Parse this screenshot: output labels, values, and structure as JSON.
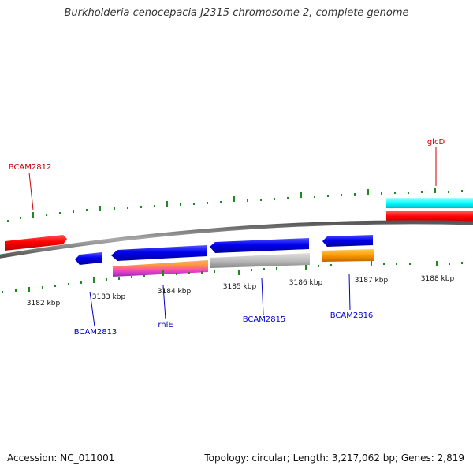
{
  "title": "Burkholderia cenocepacia J2315 chromosome 2, complete genome",
  "footer": {
    "accession": "Accession: NC_011001",
    "topology": "Topology: circular; Length: 3,217,062 bp; Genes: 2,819"
  },
  "ticks": {
    "labels": [
      "3182 kbp",
      "3183 kbp",
      "3184 kbp",
      "3185 kbp",
      "3186 kbp",
      "3187 kbp",
      "3188 kbp"
    ],
    "color": "#228822"
  },
  "genes": [
    {
      "name": "BCAM2812",
      "strand": "+",
      "color": "#ff0000"
    },
    {
      "name": "BCAM2813",
      "strand": "-",
      "color": "#0000ee"
    },
    {
      "name": "rhlE",
      "strand": "-",
      "color": "#0000ee"
    },
    {
      "name": "BCAM2815",
      "strand": "-",
      "color": "#0000ee"
    },
    {
      "name": "BCAM2816",
      "strand": "-",
      "color": "#0000ee"
    },
    {
      "name": "glcD",
      "strand": "+",
      "color": "#ff0000"
    }
  ],
  "feature_colors": {
    "gene_forward": "#ff0000",
    "gene_reverse": "#0000ee",
    "cds_forward": "#00ffff",
    "misc_feature": "#ff9900",
    "pseudo": "#bbbbbb",
    "backbone": "#888888"
  }
}
